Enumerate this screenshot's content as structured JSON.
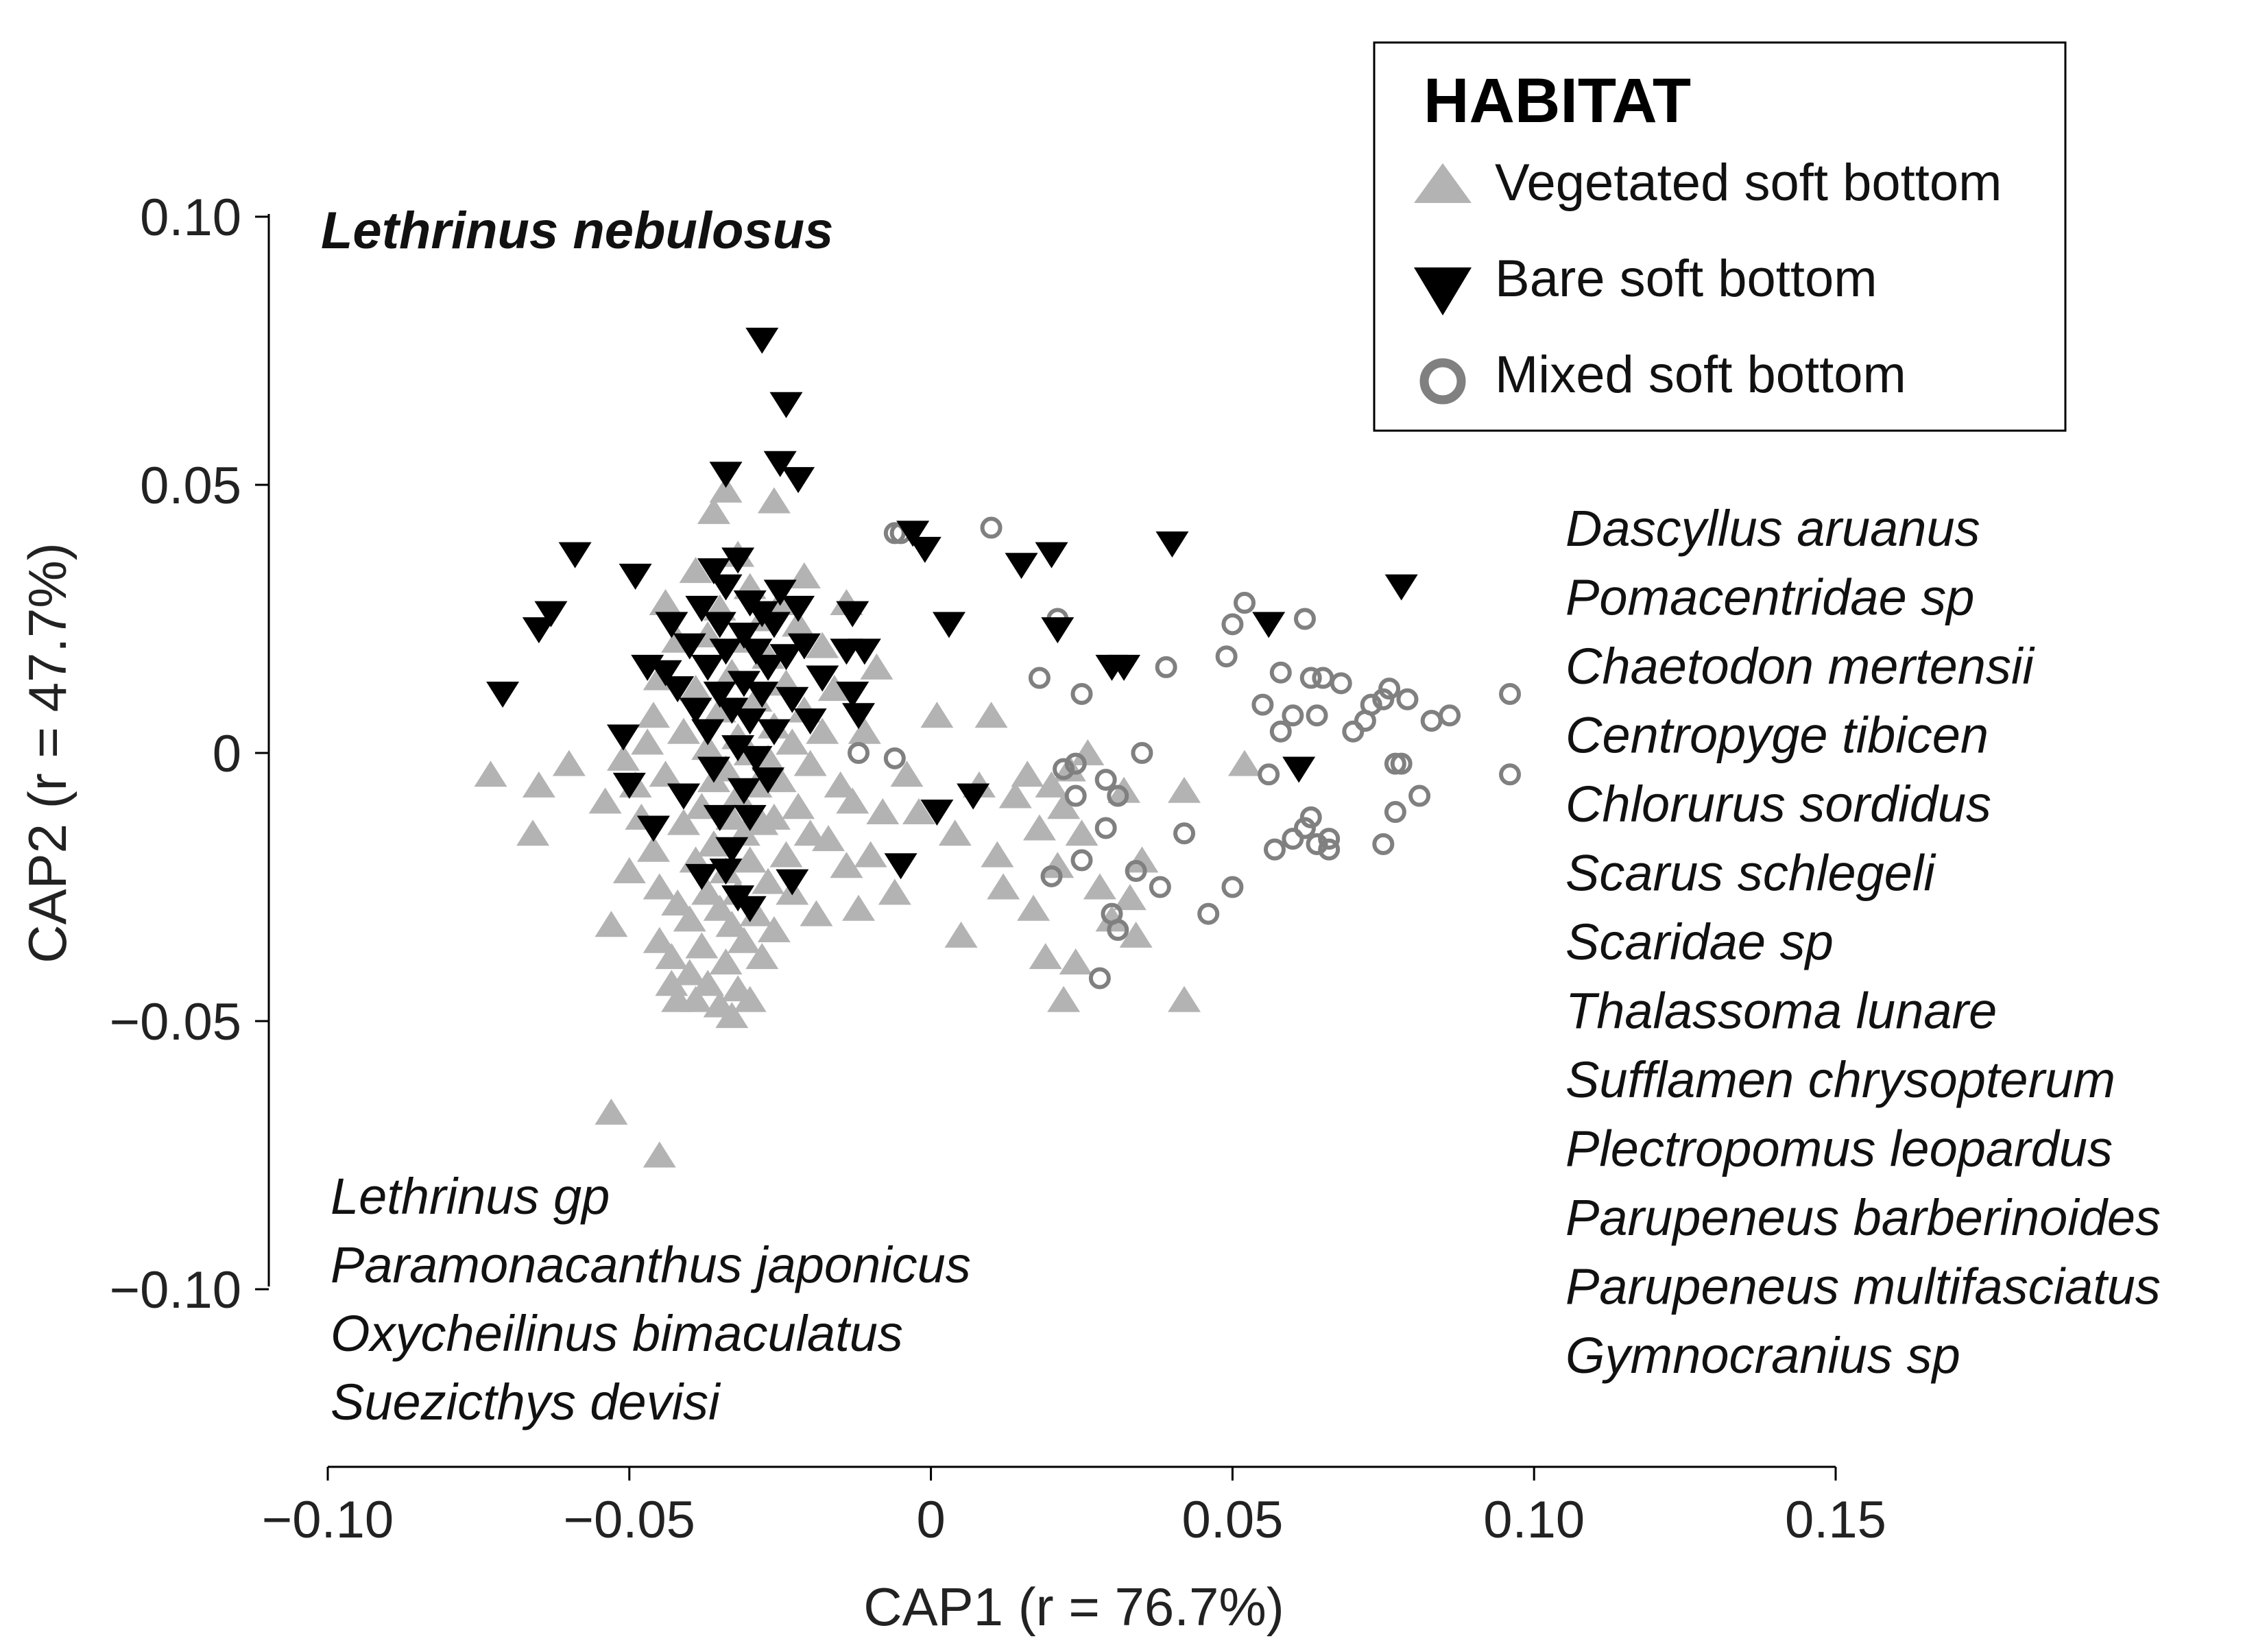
{
  "chart_data": {
    "type": "scatter",
    "xlabel": "CAP1 (r = 76.7%)",
    "ylabel": "CAP2 (r = 47.7%)",
    "xlim": [
      -0.1,
      0.15
    ],
    "ylim": [
      -0.1,
      0.1
    ],
    "x_ticks": [
      "−0.10",
      "−0.05",
      "0",
      "0.05",
      "0.10",
      "0.15"
    ],
    "y_ticks": [
      "0.10",
      "0.05",
      "0",
      "−0.05",
      "−0.10"
    ],
    "legend": {
      "title": "HABITAT",
      "placement": "top-right",
      "entries": [
        "Vegetated soft bottom",
        "Bare soft bottom",
        "Mixed soft bottom"
      ]
    },
    "colors": {
      "Vegetated soft bottom": "#b3b3b3",
      "Bare soft bottom": "#000000",
      "Mixed soft bottom": "#808080"
    },
    "annotations": {
      "top_left_bold": "Lethrinus nebulosus",
      "bottom_left": [
        "Lethrinus gp",
        "Paramonacanthus japonicus",
        "Oxycheilinus bimaculatus",
        "Suezicthys devisi"
      ],
      "right": [
        "Dascyllus aruanus",
        "Pomacentridae sp",
        "Chaetodon mertensii",
        "Centropyge tibicen",
        "Chlorurus sordidus",
        "Scarus schlegeli",
        "Scaridae sp",
        "Thalassoma lunare",
        "Sufflamen chrysopterum",
        "Plectropomus leopardus",
        "Parupeneus barberinoides",
        "Parupeneus multifasciatus",
        "Gymnocranius sp"
      ]
    },
    "series": [
      {
        "name": "Vegetated soft bottom",
        "marker": "triangle-up",
        "points": [
          [
            -0.073,
            -0.004
          ],
          [
            -0.066,
            -0.015
          ],
          [
            -0.065,
            -0.006
          ],
          [
            -0.06,
            -0.002
          ],
          [
            -0.054,
            -0.009
          ],
          [
            -0.053,
            -0.032
          ],
          [
            -0.053,
            -0.067
          ],
          [
            -0.051,
            -0.001
          ],
          [
            -0.05,
            -0.022
          ],
          [
            -0.049,
            -0.006
          ],
          [
            -0.048,
            -0.012
          ],
          [
            -0.047,
            0.002
          ],
          [
            -0.046,
            0.007
          ],
          [
            -0.046,
            -0.018
          ],
          [
            -0.045,
            0.014
          ],
          [
            -0.045,
            -0.025
          ],
          [
            -0.045,
            -0.035
          ],
          [
            -0.045,
            -0.075
          ],
          [
            -0.044,
            0.028
          ],
          [
            -0.044,
            -0.004
          ],
          [
            -0.043,
            -0.038
          ],
          [
            -0.043,
            -0.043
          ],
          [
            -0.042,
            0.021
          ],
          [
            -0.042,
            -0.028
          ],
          [
            -0.042,
            -0.046
          ],
          [
            -0.041,
            0.004
          ],
          [
            -0.041,
            -0.013
          ],
          [
            -0.04,
            -0.031
          ],
          [
            -0.04,
            -0.041
          ],
          [
            -0.039,
            0.034
          ],
          [
            -0.039,
            0.012
          ],
          [
            -0.039,
            -0.02
          ],
          [
            -0.039,
            -0.046
          ],
          [
            -0.038,
            -0.01
          ],
          [
            -0.038,
            -0.036
          ],
          [
            -0.037,
            0.022
          ],
          [
            -0.037,
            0.001
          ],
          [
            -0.037,
            -0.026
          ],
          [
            -0.037,
            -0.043
          ],
          [
            -0.036,
            0.045
          ],
          [
            -0.036,
            -0.005
          ],
          [
            -0.036,
            -0.017
          ],
          [
            -0.035,
            0.027
          ],
          [
            -0.035,
            0.008
          ],
          [
            -0.035,
            -0.029
          ],
          [
            -0.035,
            -0.047
          ],
          [
            -0.034,
            0.049
          ],
          [
            -0.034,
            -0.003
          ],
          [
            -0.034,
            -0.022
          ],
          [
            -0.034,
            -0.039
          ],
          [
            -0.033,
            0.015
          ],
          [
            -0.033,
            -0.012
          ],
          [
            -0.033,
            -0.032
          ],
          [
            -0.033,
            -0.049
          ],
          [
            -0.032,
            0.037
          ],
          [
            -0.032,
            0.003
          ],
          [
            -0.032,
            -0.008
          ],
          [
            -0.032,
            -0.026
          ],
          [
            -0.032,
            -0.044
          ],
          [
            -0.031,
            0.021
          ],
          [
            -0.031,
            -0.015
          ],
          [
            -0.031,
            -0.035
          ],
          [
            -0.03,
            0.031
          ],
          [
            -0.03,
            0.0
          ],
          [
            -0.03,
            -0.02
          ],
          [
            -0.03,
            -0.046
          ],
          [
            -0.029,
            0.01
          ],
          [
            -0.029,
            -0.006
          ],
          [
            -0.029,
            -0.03
          ],
          [
            -0.028,
            0.025
          ],
          [
            -0.028,
            -0.013
          ],
          [
            -0.028,
            -0.038
          ],
          [
            -0.027,
            0.018
          ],
          [
            -0.027,
            -0.001
          ],
          [
            -0.027,
            -0.024
          ],
          [
            -0.026,
            0.047
          ],
          [
            -0.026,
            0.005
          ],
          [
            -0.026,
            -0.012
          ],
          [
            -0.026,
            -0.033
          ],
          [
            -0.025,
            0.028
          ],
          [
            -0.025,
            -0.005
          ],
          [
            -0.024,
            0.013
          ],
          [
            -0.024,
            -0.019
          ],
          [
            -0.023,
            0.002
          ],
          [
            -0.023,
            -0.026
          ],
          [
            -0.022,
            0.024
          ],
          [
            -0.022,
            -0.01
          ],
          [
            -0.021,
            0.033
          ],
          [
            -0.021,
            0.008
          ],
          [
            -0.02,
            -0.002
          ],
          [
            -0.02,
            -0.015
          ],
          [
            -0.019,
            -0.03
          ],
          [
            -0.018,
            0.02
          ],
          [
            -0.018,
            0.004
          ],
          [
            -0.017,
            -0.016
          ],
          [
            -0.016,
            0.012
          ],
          [
            -0.015,
            -0.006
          ],
          [
            -0.014,
            0.028
          ],
          [
            -0.014,
            -0.021
          ],
          [
            -0.013,
            -0.009
          ],
          [
            -0.012,
            -0.029
          ],
          [
            -0.011,
            0.004
          ],
          [
            -0.01,
            -0.019
          ],
          [
            -0.009,
            0.016
          ],
          [
            -0.008,
            -0.011
          ],
          [
            -0.006,
            -0.026
          ],
          [
            -0.004,
            -0.004
          ],
          [
            -0.002,
            -0.011
          ],
          [
            0.001,
            0.007
          ],
          [
            0.004,
            -0.015
          ],
          [
            0.005,
            -0.034
          ],
          [
            0.008,
            -0.006
          ],
          [
            0.01,
            0.007
          ],
          [
            0.011,
            -0.019
          ],
          [
            0.012,
            -0.025
          ],
          [
            0.014,
            -0.008
          ],
          [
            0.016,
            -0.004
          ],
          [
            0.017,
            -0.029
          ],
          [
            0.018,
            -0.014
          ],
          [
            0.019,
            -0.038
          ],
          [
            0.02,
            -0.006
          ],
          [
            0.021,
            -0.021
          ],
          [
            0.022,
            -0.01
          ],
          [
            0.022,
            -0.046
          ],
          [
            0.023,
            -0.003
          ],
          [
            0.024,
            -0.039
          ],
          [
            0.025,
            -0.015
          ],
          [
            0.026,
            0.0
          ],
          [
            0.028,
            -0.025
          ],
          [
            0.03,
            -0.031
          ],
          [
            0.032,
            -0.007
          ],
          [
            0.033,
            -0.027
          ],
          [
            0.034,
            -0.034
          ],
          [
            0.035,
            -0.02
          ],
          [
            0.042,
            -0.007
          ],
          [
            0.042,
            -0.046
          ],
          [
            0.052,
            -0.002
          ]
        ]
      },
      {
        "name": "Bare soft bottom",
        "marker": "triangle-down",
        "points": [
          [
            -0.071,
            0.011
          ],
          [
            -0.065,
            0.023
          ],
          [
            -0.063,
            0.026
          ],
          [
            -0.059,
            0.037
          ],
          [
            -0.051,
            0.003
          ],
          [
            -0.05,
            -0.006
          ],
          [
            -0.049,
            0.033
          ],
          [
            -0.047,
            0.016
          ],
          [
            -0.046,
            -0.014
          ],
          [
            -0.044,
            0.015
          ],
          [
            -0.043,
            0.024
          ],
          [
            -0.042,
            0.012
          ],
          [
            -0.041,
            -0.008
          ],
          [
            -0.04,
            0.02
          ],
          [
            -0.039,
            0.008
          ],
          [
            -0.038,
            0.027
          ],
          [
            -0.038,
            -0.023
          ],
          [
            -0.037,
            0.016
          ],
          [
            -0.037,
            0.004
          ],
          [
            -0.036,
            0.034
          ],
          [
            -0.036,
            -0.003
          ],
          [
            -0.035,
            0.024
          ],
          [
            -0.035,
            0.011
          ],
          [
            -0.035,
            -0.012
          ],
          [
            -0.034,
            0.052
          ],
          [
            -0.034,
            0.031
          ],
          [
            -0.034,
            0.019
          ],
          [
            -0.034,
            -0.022
          ],
          [
            -0.033,
            0.008
          ],
          [
            -0.033,
            -0.018
          ],
          [
            -0.032,
            0.036
          ],
          [
            -0.032,
            0.001
          ],
          [
            -0.032,
            -0.027
          ],
          [
            -0.031,
            0.022
          ],
          [
            -0.031,
            0.013
          ],
          [
            -0.031,
            -0.007
          ],
          [
            -0.03,
            0.028
          ],
          [
            -0.03,
            0.006
          ],
          [
            -0.03,
            -0.012
          ],
          [
            -0.03,
            -0.029
          ],
          [
            -0.029,
            0.019
          ],
          [
            -0.029,
            -0.001
          ],
          [
            -0.028,
            0.077
          ],
          [
            -0.028,
            0.026
          ],
          [
            -0.028,
            0.011
          ],
          [
            -0.027,
            -0.005
          ],
          [
            -0.027,
            0.016
          ],
          [
            -0.026,
            0.024
          ],
          [
            -0.026,
            0.004
          ],
          [
            -0.025,
            0.054
          ],
          [
            -0.025,
            0.03
          ],
          [
            -0.024,
            0.065
          ],
          [
            -0.024,
            0.018
          ],
          [
            -0.023,
            0.01
          ],
          [
            -0.023,
            -0.024
          ],
          [
            -0.022,
            0.051
          ],
          [
            -0.022,
            0.027
          ],
          [
            -0.021,
            0.02
          ],
          [
            -0.02,
            0.006
          ],
          [
            -0.018,
            0.014
          ],
          [
            -0.014,
            0.019
          ],
          [
            -0.013,
            0.026
          ],
          [
            -0.013,
            0.011
          ],
          [
            -0.012,
            0.007
          ],
          [
            -0.011,
            0.019
          ],
          [
            -0.005,
            -0.021
          ],
          [
            -0.003,
            0.041
          ],
          [
            -0.001,
            0.038
          ],
          [
            0.001,
            -0.011
          ],
          [
            0.003,
            0.024
          ],
          [
            0.007,
            -0.008
          ],
          [
            0.015,
            0.035
          ],
          [
            0.02,
            0.037
          ],
          [
            0.021,
            0.023
          ],
          [
            0.03,
            0.016
          ],
          [
            0.032,
            0.016
          ],
          [
            0.04,
            0.039
          ],
          [
            0.056,
            0.024
          ],
          [
            0.061,
            -0.003
          ],
          [
            0.078,
            0.031
          ]
        ]
      },
      {
        "name": "Mixed soft bottom",
        "marker": "circle-open",
        "points": [
          [
            -0.005,
            0.041
          ],
          [
            -0.006,
            0.041
          ],
          [
            -0.012,
            0.0
          ],
          [
            -0.006,
            -0.001
          ],
          [
            0.01,
            0.042
          ],
          [
            0.018,
            0.014
          ],
          [
            0.02,
            -0.023
          ],
          [
            0.021,
            0.025
          ],
          [
            0.022,
            -0.003
          ],
          [
            0.024,
            -0.002
          ],
          [
            0.024,
            -0.008
          ],
          [
            0.025,
            0.011
          ],
          [
            0.025,
            -0.02
          ],
          [
            0.028,
            -0.042
          ],
          [
            0.029,
            -0.005
          ],
          [
            0.029,
            -0.014
          ],
          [
            0.03,
            -0.03
          ],
          [
            0.031,
            -0.033
          ],
          [
            0.031,
            -0.008
          ],
          [
            0.034,
            -0.022
          ],
          [
            0.035,
            0.0
          ],
          [
            0.038,
            -0.025
          ],
          [
            0.039,
            0.016
          ],
          [
            0.042,
            -0.015
          ],
          [
            0.046,
            -0.03
          ],
          [
            0.049,
            0.018
          ],
          [
            0.05,
            -0.025
          ],
          [
            0.05,
            0.024
          ],
          [
            0.052,
            0.028
          ],
          [
            0.055,
            0.009
          ],
          [
            0.056,
            -0.004
          ],
          [
            0.057,
            -0.018
          ],
          [
            0.058,
            0.004
          ],
          [
            0.058,
            0.015
          ],
          [
            0.06,
            -0.016
          ],
          [
            0.06,
            0.007
          ],
          [
            0.062,
            0.025
          ],
          [
            0.062,
            -0.014
          ],
          [
            0.063,
            0.014
          ],
          [
            0.063,
            -0.012
          ],
          [
            0.064,
            0.007
          ],
          [
            0.064,
            -0.017
          ],
          [
            0.065,
            0.014
          ],
          [
            0.066,
            -0.016
          ],
          [
            0.066,
            -0.018
          ],
          [
            0.068,
            0.013
          ],
          [
            0.07,
            0.004
          ],
          [
            0.072,
            0.006
          ],
          [
            0.073,
            0.009
          ],
          [
            0.075,
            0.01
          ],
          [
            0.075,
            -0.017
          ],
          [
            0.076,
            0.012
          ],
          [
            0.077,
            -0.002
          ],
          [
            0.077,
            -0.011
          ],
          [
            0.078,
            -0.002
          ],
          [
            0.079,
            0.01
          ],
          [
            0.081,
            -0.008
          ],
          [
            0.083,
            0.006
          ],
          [
            0.086,
            0.007
          ],
          [
            0.096,
            0.011
          ],
          [
            0.096,
            -0.004
          ]
        ]
      }
    ]
  }
}
